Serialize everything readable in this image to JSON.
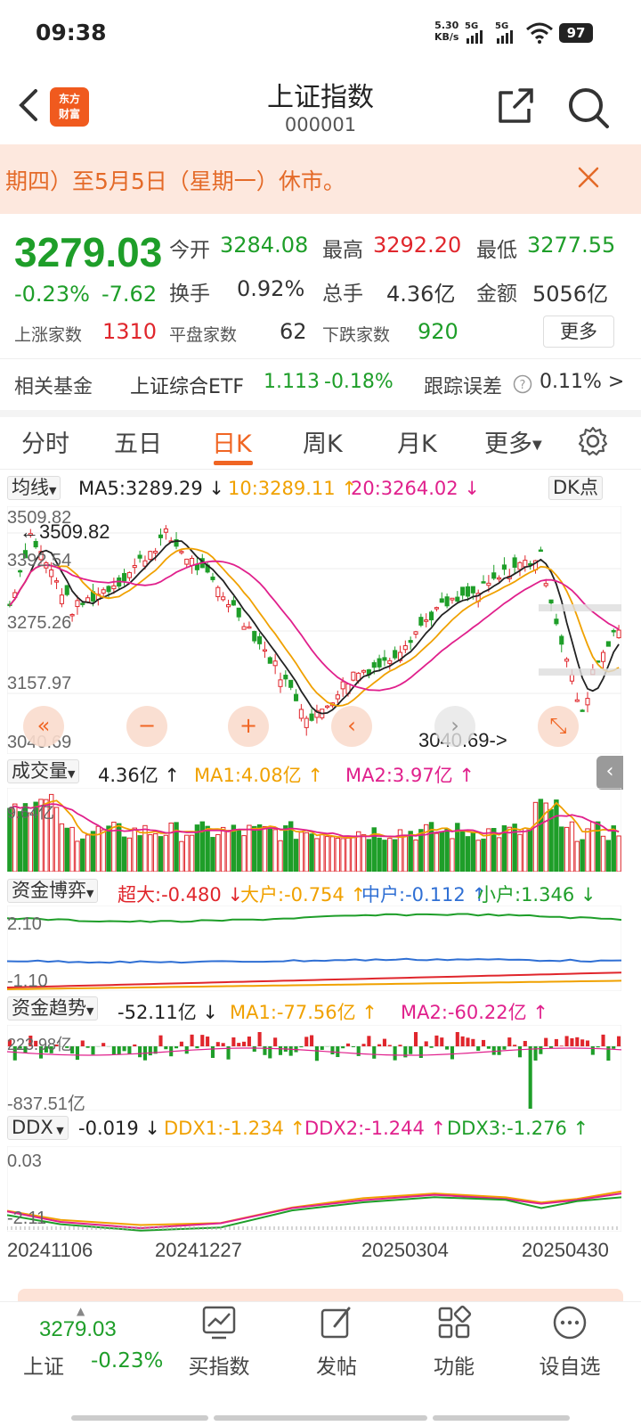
{
  "status_bar": {
    "time": "09:38",
    "net_speed_value": "5.30",
    "net_speed_unit": "KB/s",
    "signal1": "5G",
    "signal2": "5G",
    "battery": "97",
    "icons": [
      "signal-icon",
      "wifi-icon",
      "battery-icon"
    ]
  },
  "header": {
    "title": "上证指数",
    "code": "000001",
    "logo_line1": "东方",
    "logo_line2": "财富"
  },
  "notice": {
    "text": "期四）至5月5日（星期一）休市。"
  },
  "quote": {
    "price": "3279.03",
    "change_pct": "-0.23%",
    "change_val": "-7.62",
    "open_label": "今开",
    "open": "3284.08",
    "high_label": "最高",
    "high": "3292.20",
    "low_label": "最低",
    "low": "3277.55",
    "turnover_label": "换手",
    "turnover": "0.92%",
    "volume_label": "总手",
    "volume": "4.36亿",
    "amount_label": "金额",
    "amount": "5056亿",
    "up_label": "上涨家数",
    "up": "1310",
    "flat_label": "平盘家数",
    "flat": "62",
    "down_label": "下跌家数",
    "down": "920",
    "more": "更多"
  },
  "fund": {
    "label": "相关基金",
    "name": "上证综合ETF",
    "price": "1.113",
    "pct": "-0.18%",
    "track_label": "跟踪误差",
    "track_value": "0.11% >"
  },
  "tabs": [
    "分时",
    "五日",
    "日K",
    "周K",
    "月K",
    "更多"
  ],
  "active_tab": "日K",
  "kline": {
    "selector": "均线",
    "ma5": "MA5:3289.29 ↓",
    "ma10": "10:3289.11 ↑",
    "ma20": "20:3264.02 ↓",
    "dk": "DK点",
    "y_labels": [
      "3509.82",
      "3392.54",
      "3275.26",
      "3157.97",
      "3040.69"
    ],
    "max_note": "←3509.82",
    "min_note": "3040.69->",
    "ctrl": [
      "«",
      "−",
      "+",
      "‹",
      "›"
    ]
  },
  "volume": {
    "selector": "成交量",
    "value": "4.36亿 ↑",
    "ma1": "MA1:4.08亿 ↑",
    "ma2": "MA2:3.97亿 ↑",
    "y_top": "9.64亿"
  },
  "capital": {
    "selector": "资金博弈",
    "super": "超大:-0.480 ↓",
    "large": "大户:-0.754 ↑",
    "mid": "中户:-0.112 ↑",
    "small": "小户:1.346 ↓",
    "y_top": "2.10",
    "y_bottom": "-1.10"
  },
  "trend": {
    "selector": "资金趋势",
    "value": "-52.11亿 ↓",
    "ma1": "MA1:-77.56亿 ↑",
    "ma2": "MA2:-60.22亿 ↑",
    "y_top": "223.98亿",
    "y_bottom": "-837.51亿"
  },
  "ddx": {
    "selector": "DDX",
    "value": "-0.019 ↓",
    "ddx1": "DDX1:-1.234 ↑",
    "ddx2": "DDX2:-1.244 ↑",
    "ddx3": "DDX3:-1.276 ↑",
    "y_top": "0.03",
    "y_bottom": "-2.11"
  },
  "x_dates": [
    "20241106",
    "20241227",
    "20250304",
    "20250430"
  ],
  "bottom_nav": {
    "index_price": "3279.03",
    "index_name": "上证",
    "index_pct": "-0.23%",
    "items": [
      "买指数",
      "发帖",
      "功能",
      "设自选"
    ]
  },
  "colors": {
    "rise": "#e0262c",
    "fall": "#1e9e29",
    "accent": "#f06523",
    "ma5": "#222222",
    "ma10": "#f0a100",
    "ma20": "#e0208c"
  }
}
